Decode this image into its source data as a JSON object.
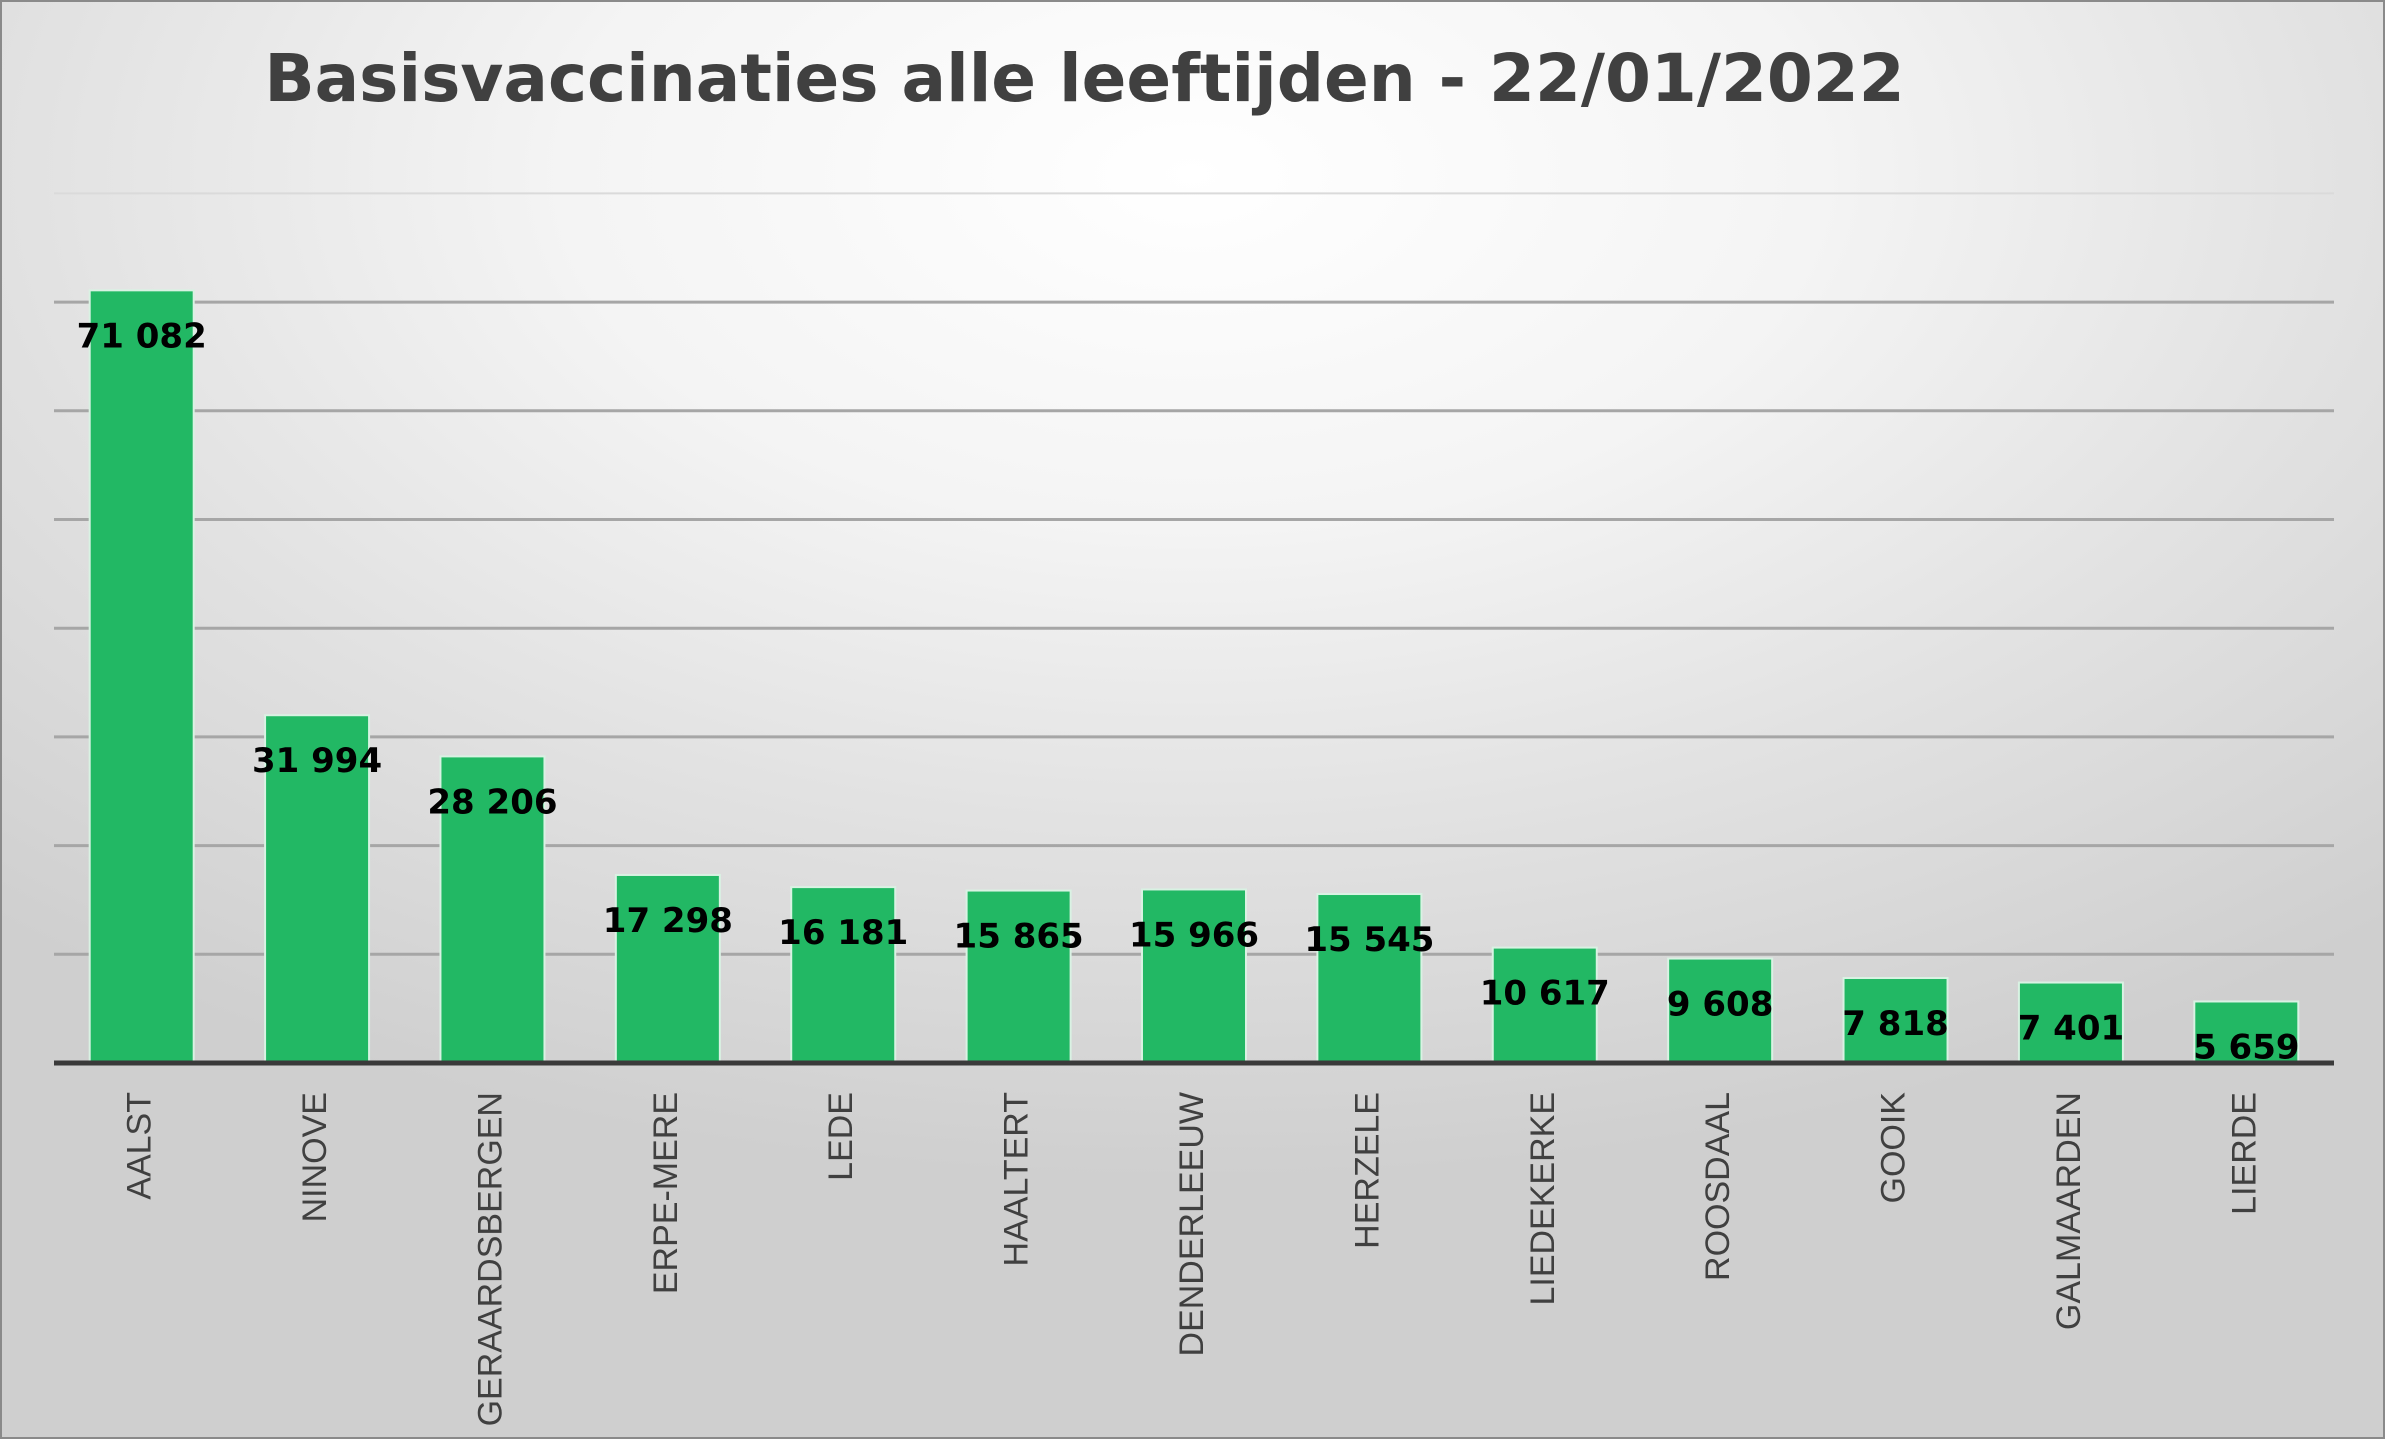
{
  "chart_data": {
    "type": "bar",
    "title": "Basisvaccinaties alle leeftijden - 22/01/2022",
    "categories": [
      "AALST",
      "NINOVE",
      "GERAARDSBERGEN",
      "ERPE-MERE",
      "LEDE",
      "HAALTERT",
      "DENDERLEEUW",
      "HERZELE",
      "LIEDEKERKE",
      "ROOSDAAL",
      "GOOIK",
      "GALMAARDEN",
      "LIERDE"
    ],
    "values": [
      71082,
      31994,
      28206,
      17298,
      16181,
      15865,
      15966,
      15545,
      10617,
      9608,
      7818,
      7401,
      5659
    ],
    "data_labels": [
      "71 082",
      "31 994",
      "28 206",
      "17 298",
      "16 181",
      "15 865",
      "15 966",
      "15 545",
      "10 617",
      "9 608",
      "7 818",
      "7 401",
      "5 659"
    ],
    "ylim": [
      0,
      80000
    ],
    "gridline_step": 10000,
    "grid": true,
    "y_tick_labels_shown": false,
    "legend": "none",
    "bar_color": "#22b864"
  }
}
